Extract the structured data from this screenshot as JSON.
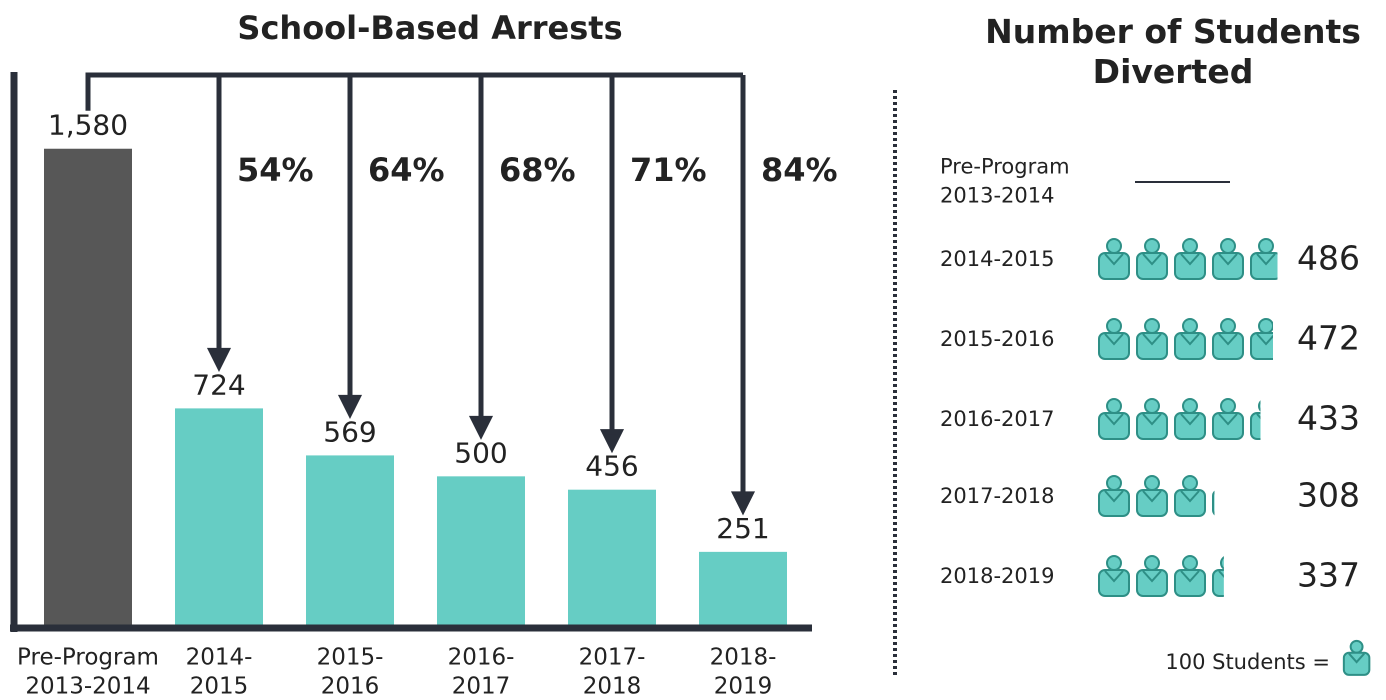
{
  "chart_data": [
    {
      "type": "bar",
      "title": "School-Based Arrests",
      "categories": [
        [
          "Pre-Program",
          "2013-2014"
        ],
        [
          "2014-",
          "2015"
        ],
        [
          "2015-",
          "2016"
        ],
        [
          "2016-",
          "2017"
        ],
        [
          "2017-",
          "2018"
        ],
        [
          "2018-",
          "2019"
        ]
      ],
      "values": [
        1580,
        724,
        569,
        500,
        456,
        251
      ],
      "value_labels": [
        "1,580",
        "724",
        "569",
        "500",
        "456",
        "251"
      ],
      "colors": [
        "#575757",
        "#66cdc4",
        "#66cdc4",
        "#66cdc4",
        "#66cdc4",
        "#66cdc4"
      ],
      "ylim": [
        0,
        1800
      ],
      "reductions": {
        "values": [
          54,
          64,
          68,
          71,
          84
        ],
        "value_labels": [
          "54%",
          "64%",
          "68%",
          "71%",
          "84%"
        ]
      }
    },
    {
      "type": "pictograph",
      "title": "Number of Students Diverted",
      "categories": [
        [
          "Pre-Program",
          "2013-2014"
        ],
        [
          "2014-2015"
        ],
        [
          "2015-2016"
        ],
        [
          "2016-2017"
        ],
        [
          "2017-2018"
        ],
        [
          "2018-2019"
        ]
      ],
      "values": [
        null,
        486,
        472,
        433,
        308,
        337
      ],
      "color": "#66cdc4",
      "legend": {
        "value": 100,
        "label": "100 Students ="
      }
    }
  ]
}
